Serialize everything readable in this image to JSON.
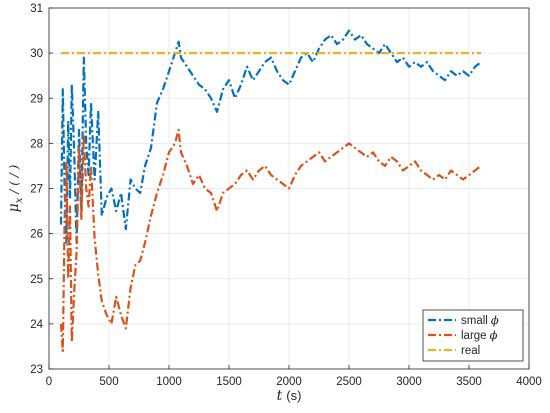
{
  "chart_data": {
    "type": "line",
    "xlabel_main": "t",
    "xlabel_unit": "(s)",
    "ylabel_main": "μ",
    "ylabel_sub": "x",
    "ylabel_rest": "/ ( / )",
    "xlim": [
      0,
      4000
    ],
    "ylim": [
      23,
      31
    ],
    "x_ticks": [
      0,
      500,
      1000,
      1500,
      2000,
      2500,
      3000,
      3500,
      4000
    ],
    "y_ticks": [
      23,
      24,
      25,
      26,
      27,
      28,
      29,
      30,
      31
    ],
    "grid": true,
    "legend_position": "bottom-right",
    "series": [
      {
        "name_text": "small",
        "name_symbol": "ϕ",
        "color": "#0072BD",
        "style": "dash-dot",
        "x": [
          100,
          115,
          130,
          145,
          160,
          175,
          190,
          210,
          230,
          250,
          270,
          290,
          310,
          330,
          350,
          380,
          410,
          440,
          480,
          520,
          560,
          600,
          640,
          680,
          720,
          760,
          800,
          850,
          900,
          950,
          1000,
          1050,
          1080,
          1100,
          1150,
          1200,
          1250,
          1300,
          1350,
          1400,
          1450,
          1500,
          1550,
          1600,
          1650,
          1700,
          1750,
          1800,
          1850,
          1900,
          1950,
          2000,
          2050,
          2100,
          2150,
          2200,
          2250,
          2300,
          2350,
          2400,
          2450,
          2500,
          2550,
          2600,
          2650,
          2700,
          2750,
          2800,
          2850,
          2900,
          2950,
          3000,
          3050,
          3100,
          3150,
          3200,
          3250,
          3300,
          3350,
          3400,
          3450,
          3500,
          3550,
          3600
        ],
        "y": [
          26.2,
          29.2,
          27.0,
          25.8,
          28.5,
          26.8,
          29.3,
          27.8,
          25.8,
          28.3,
          26.5,
          29.9,
          28.0,
          27.3,
          28.9,
          27.2,
          28.7,
          26.4,
          26.8,
          27.0,
          26.5,
          26.9,
          26.1,
          27.2,
          27.0,
          26.9,
          27.5,
          27.9,
          28.9,
          29.2,
          29.6,
          30.0,
          30.25,
          29.9,
          29.7,
          29.5,
          29.3,
          29.2,
          29.0,
          28.7,
          29.2,
          29.4,
          29.0,
          29.3,
          29.7,
          29.4,
          29.6,
          29.8,
          29.9,
          29.6,
          29.4,
          29.3,
          29.6,
          29.9,
          30.0,
          29.8,
          30.1,
          30.3,
          30.4,
          30.2,
          30.3,
          30.5,
          30.3,
          30.4,
          30.2,
          30.1,
          30.0,
          30.2,
          30.0,
          29.8,
          29.9,
          29.7,
          29.8,
          29.7,
          29.8,
          29.6,
          29.5,
          29.4,
          29.6,
          29.5,
          29.6,
          29.5,
          29.7,
          29.8
        ]
      },
      {
        "name_text": "large",
        "name_symbol": "ϕ",
        "color": "#D95319",
        "style": "dash-dot",
        "x": [
          100,
          115,
          130,
          145,
          160,
          175,
          190,
          210,
          230,
          250,
          270,
          290,
          310,
          330,
          350,
          380,
          410,
          440,
          480,
          520,
          560,
          600,
          640,
          680,
          720,
          760,
          800,
          850,
          900,
          950,
          1000,
          1050,
          1080,
          1100,
          1150,
          1200,
          1250,
          1300,
          1350,
          1400,
          1450,
          1500,
          1550,
          1600,
          1650,
          1700,
          1750,
          1800,
          1850,
          1900,
          1950,
          2000,
          2050,
          2100,
          2150,
          2200,
          2250,
          2300,
          2350,
          2400,
          2450,
          2500,
          2550,
          2600,
          2650,
          2700,
          2750,
          2800,
          2850,
          2900,
          2950,
          3000,
          3050,
          3100,
          3150,
          3200,
          3250,
          3300,
          3350,
          3400,
          3450,
          3500,
          3550,
          3600
        ],
        "y": [
          24.0,
          23.4,
          26.3,
          27.6,
          25.0,
          26.6,
          23.6,
          24.7,
          25.6,
          27.9,
          26.3,
          28.2,
          27.0,
          26.6,
          27.5,
          25.9,
          25.1,
          24.5,
          24.2,
          24.0,
          24.6,
          24.2,
          23.9,
          24.8,
          25.3,
          25.4,
          25.8,
          26.4,
          26.9,
          27.3,
          27.8,
          28.0,
          28.3,
          27.8,
          27.5,
          27.1,
          27.3,
          27.0,
          26.9,
          26.5,
          26.9,
          27.0,
          27.1,
          27.3,
          27.4,
          27.2,
          27.4,
          27.5,
          27.3,
          27.2,
          27.1,
          27.0,
          27.3,
          27.5,
          27.6,
          27.7,
          27.8,
          27.6,
          27.7,
          27.8,
          27.9,
          28.0,
          27.9,
          27.8,
          27.7,
          27.8,
          27.6,
          27.5,
          27.7,
          27.6,
          27.4,
          27.5,
          27.6,
          27.4,
          27.3,
          27.2,
          27.3,
          27.2,
          27.4,
          27.3,
          27.2,
          27.3,
          27.4,
          27.5
        ]
      },
      {
        "name_text": "real",
        "name_symbol": "",
        "color": "#EDB120",
        "style": "dash-dot",
        "x": [
          100,
          3600
        ],
        "y": [
          30,
          30
        ]
      }
    ]
  }
}
